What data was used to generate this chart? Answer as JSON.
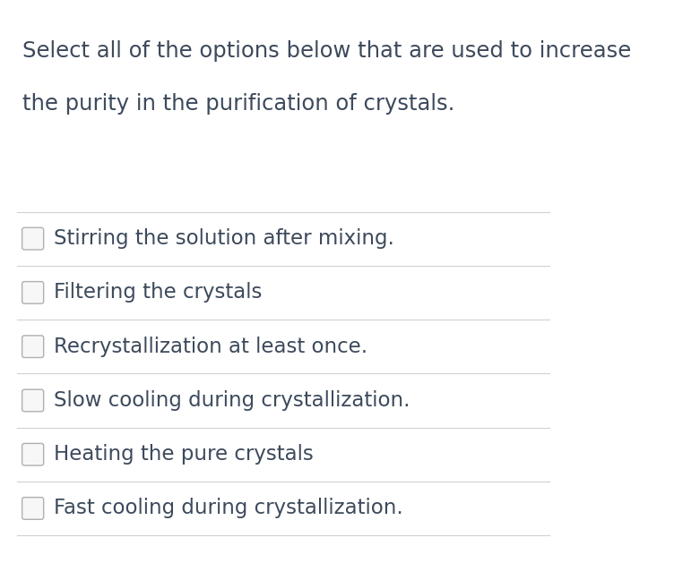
{
  "title_line1": "Select all of the options below that are used to increase",
  "title_line2": "the purity in the purification of crystals.",
  "options": [
    "Stirring the solution after mixing.",
    "Filtering the crystals",
    "Recrystallization at least once.",
    "Slow cooling during crystallization.",
    "Heating the pure crystals",
    "Fast cooling during crystallization."
  ],
  "background_color": "#ffffff",
  "title_color": "#3d4a5c",
  "option_text_color": "#3d4a5c",
  "divider_color": "#d0d0d0",
  "checkbox_edge_color": "#b0b0b0",
  "checkbox_fill": "#f7f7f7",
  "title_fontsize": 17.5,
  "option_fontsize": 16.5,
  "fig_width": 7.52,
  "fig_height": 6.48
}
